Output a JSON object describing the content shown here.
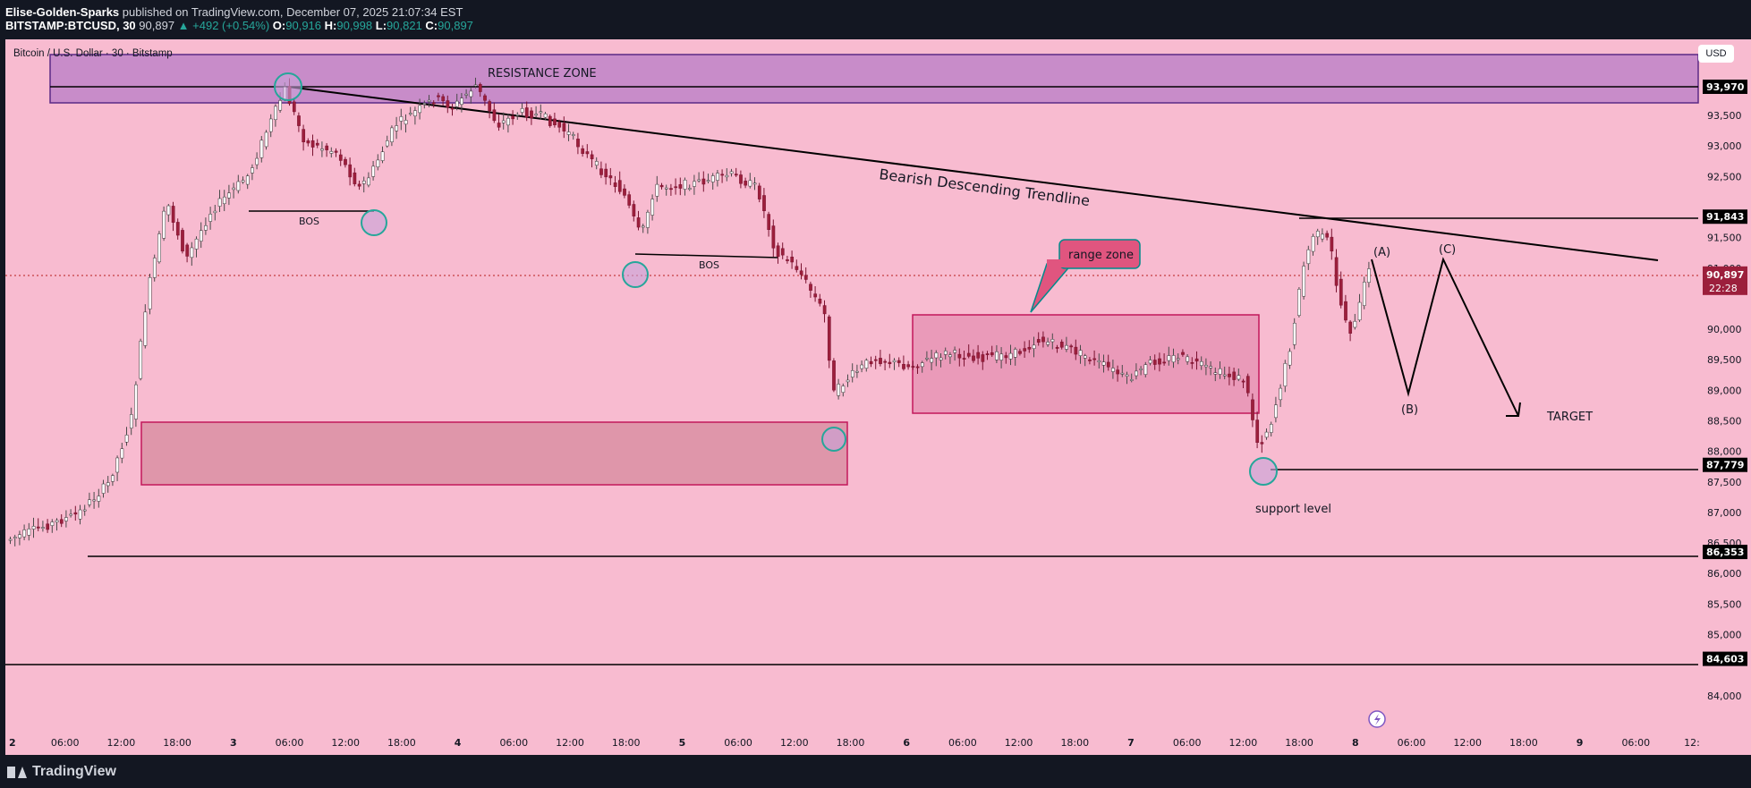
{
  "header": {
    "publisher": "Elise-Golden-Sparks",
    "published_text": " published on TradingView.com, December 07, 2025 21:07:34 EST",
    "symbol": "BITSTAMP:BTCUSD, 30",
    "last": "90,897",
    "change": "+492 (+0.54%)",
    "o_label": "O:",
    "o_value": "90,916",
    "h_label": "H:",
    "h_value": "90,998",
    "l_label": "L:",
    "l_value": "90,821",
    "c_label": "C:",
    "c_value": "90,897"
  },
  "series_title": "Bitcoin / U.S. Dollar · 30 · Bitstamp",
  "currency_button": "USD",
  "price_axis": {
    "ticks": [
      "93,500",
      "93,000",
      "92,500",
      "91,500",
      "91,000",
      "90,000",
      "89,500",
      "89,000",
      "88,500",
      "88,000",
      "87,500",
      "87,000",
      "86,500",
      "86,000",
      "85,500",
      "85,000",
      "84,000"
    ],
    "tick_values": [
      93500,
      93000,
      92500,
      91500,
      91000,
      90000,
      89500,
      89000,
      88500,
      88000,
      87500,
      87000,
      86500,
      86000,
      85500,
      85000,
      84000
    ],
    "labels": [
      {
        "text": "93,970",
        "value": 93970
      },
      {
        "text": "91,843",
        "value": 91843
      },
      {
        "text": "87,779",
        "value": 87779
      },
      {
        "text": "86,353",
        "value": 86353
      },
      {
        "text": "84,603",
        "value": 84603
      }
    ],
    "current": {
      "price": "90,897",
      "value": 90897,
      "countdown": "22:28"
    }
  },
  "time_axis": [
    "2",
    "06:00",
    "12:00",
    "18:00",
    "3",
    "06:00",
    "12:00",
    "18:00",
    "4",
    "06:00",
    "12:00",
    "18:00",
    "5",
    "06:00",
    "12:00",
    "18:00",
    "6",
    "06:00",
    "12:00",
    "18:00",
    "7",
    "06:00",
    "12:00",
    "18:00",
    "8",
    "06:00",
    "12:00",
    "18:00",
    "9",
    "06:00",
    "12:"
  ],
  "annotations": {
    "resistance": "RESISTANCE ZONE",
    "trendline": "Bearish Descending Trendline",
    "bos1": "BOS",
    "bos2": "BOS",
    "range": "range zone",
    "wave_a": "(A)",
    "wave_b": "(B)",
    "wave_c": "(C)",
    "target": "TARGET",
    "support": "support level"
  },
  "colors": {
    "background": "#f8bbd0",
    "up_candle": "#ffffff",
    "down_candle": "#9c1f3c",
    "resistance_zone": "#c084c8",
    "demand_zone": "#d78a9e",
    "range_zone": "#e68fb2",
    "circle_marker": "#26a69a"
  },
  "footer": {
    "brand": "TradingView"
  }
}
